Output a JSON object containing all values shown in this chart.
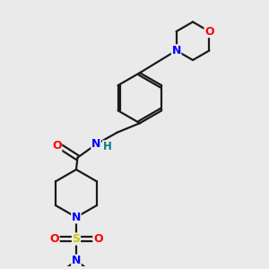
{
  "background_color": "#eaeaea",
  "bond_color": "#1a1a1a",
  "atom_colors": {
    "N": "#0000ff",
    "O": "#ff0000",
    "S": "#cccc00",
    "C": "#1a1a1a",
    "H": "#008080"
  },
  "figsize": [
    3.0,
    3.0
  ],
  "dpi": 100,
  "xlim": [
    0,
    10
  ],
  "ylim": [
    0,
    10
  ]
}
